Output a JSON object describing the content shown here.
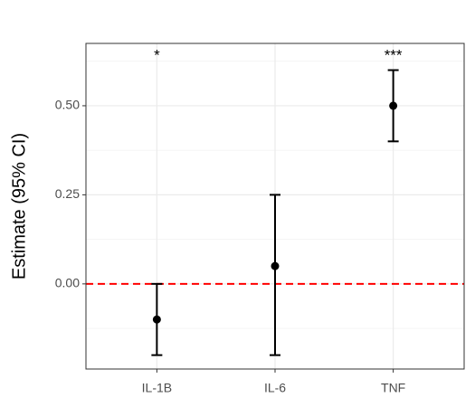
{
  "chart_data": {
    "type": "errorbar",
    "ylabel": "Estimate (95% CI)",
    "categories": [
      "IL-1B",
      "IL-6",
      "TNF"
    ],
    "values": [
      -0.1,
      0.05,
      0.5
    ],
    "lower": [
      -0.2,
      -0.2,
      0.4
    ],
    "upper": [
      0.0,
      0.25,
      0.6
    ],
    "color": "#000000",
    "ylim": [
      -0.239,
      0.675
    ],
    "yticks": [
      {
        "value": 0,
        "label": "0.00"
      },
      0.25,
      {
        "value": 0.5,
        "label": "0.50"
      }
    ],
    "yminor": [
      -0.125,
      0.125,
      0.375,
      0.625
    ],
    "grid": true,
    "hline": {
      "y": 0,
      "color": "#ff0000"
    },
    "annotations": [
      {
        "x": "IL-1B",
        "y": 0.64,
        "text": "*"
      },
      {
        "x": "TNF",
        "y": 0.64,
        "text": "***"
      }
    ]
  }
}
